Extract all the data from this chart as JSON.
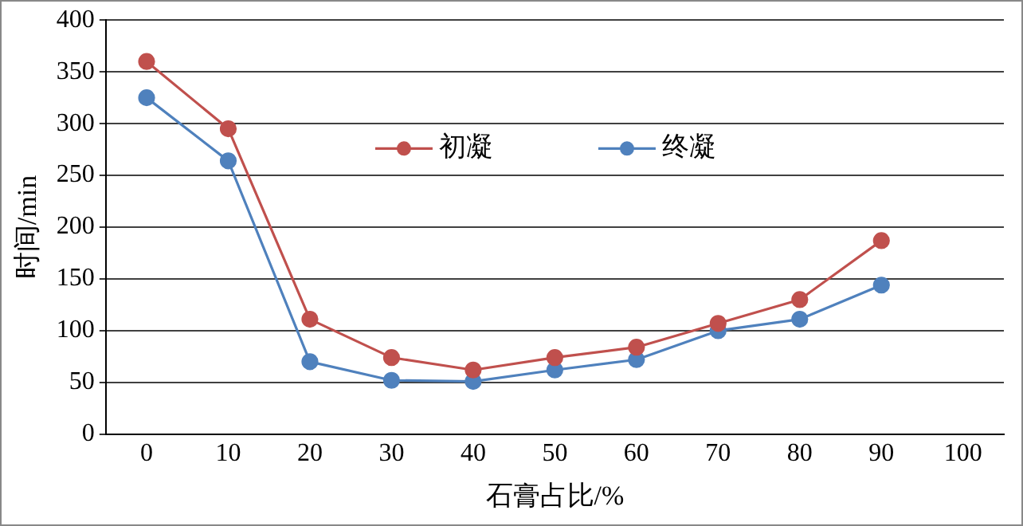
{
  "chart_data": {
    "type": "line",
    "xlabel": "石膏占比/%",
    "ylabel": "时间/min",
    "x": [
      0,
      10,
      20,
      30,
      40,
      50,
      60,
      70,
      80,
      90
    ],
    "series": [
      {
        "name": "初凝",
        "color": "#c0504d",
        "values": [
          360,
          295,
          111,
          74,
          62,
          74,
          84,
          107,
          130,
          187
        ]
      },
      {
        "name": "终凝",
        "color": "#4f81bd",
        "values": [
          325,
          264,
          70,
          52,
          51,
          62,
          72,
          100,
          111,
          144
        ]
      }
    ],
    "xlim": [
      -5,
      105
    ],
    "xticks": [
      0,
      10,
      20,
      30,
      40,
      50,
      60,
      70,
      80,
      90,
      100
    ],
    "ylim": [
      0,
      400
    ],
    "yticks": [
      0,
      50,
      100,
      150,
      200,
      250,
      300,
      350,
      400
    ],
    "grid": "y",
    "legend": "top",
    "marker": "circle",
    "line_style": "solid"
  }
}
